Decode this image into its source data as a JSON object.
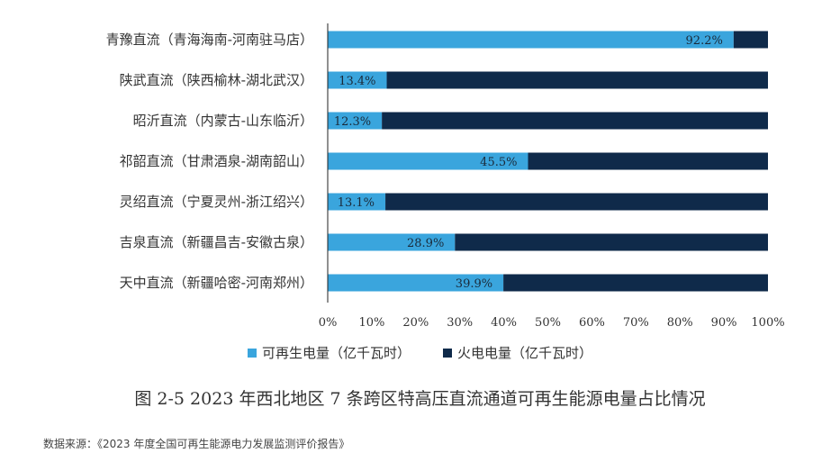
{
  "chart_data": {
    "type": "bar",
    "orientation": "horizontal",
    "stacked": true,
    "percent": true,
    "categories": [
      "青豫直流（青海海南-河南驻马店）",
      "陕武直流（陕西榆林-湖北武汉）",
      "昭沂直流（内蒙古-山东临沂）",
      "祁韶直流（甘肃酒泉-湖南韶山）",
      "灵绍直流（宁夏灵州-浙江绍兴）",
      "吉泉直流（新疆昌吉-安徽古泉）",
      "天中直流（新疆哈密-河南郑州）"
    ],
    "series": [
      {
        "name": "可再生电量（亿千瓦时）",
        "values": [
          92.2,
          13.4,
          12.3,
          45.5,
          13.1,
          28.9,
          39.9
        ],
        "color": "#3aa5dd"
      },
      {
        "name": "火电电量（亿千瓦时）",
        "values": [
          7.8,
          86.6,
          87.7,
          54.5,
          86.9,
          71.1,
          60.1
        ],
        "color": "#0f2a4a"
      }
    ],
    "data_labels": [
      "92.2%",
      "13.4%",
      "12.3%",
      "45.5%",
      "13.1%",
      "28.9%",
      "39.9%"
    ],
    "x_ticks": [
      "0%",
      "10%",
      "20%",
      "30%",
      "40%",
      "50%",
      "60%",
      "70%",
      "80%",
      "90%",
      "100%"
    ],
    "xlim": [
      0,
      100
    ],
    "legend_position": "bottom",
    "title": ""
  },
  "caption": "图 2-5  2023 年西北地区 7 条跨区特高压直流通道可再生能源电量占比情况",
  "source": "数据来源：《2023 年度全国可再生能源电力发展监测评价报告》"
}
